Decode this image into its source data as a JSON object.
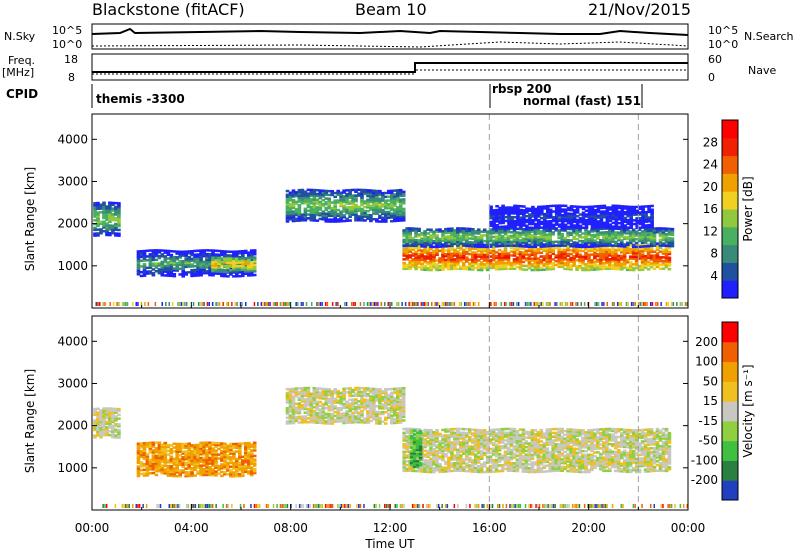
{
  "header": {
    "title": "Blackstone (fitACF)",
    "beam": "Beam 10",
    "date": "21/Nov/2015"
  },
  "strip": {
    "nsky_label": "N.Sky",
    "nsky_ticks": [
      "10^5",
      "10^0"
    ],
    "nsearch_label": "N.Search",
    "nsearch_ticks": [
      "10^5",
      "10^0"
    ],
    "freq_label": "Freq.",
    "freq_unit": "[MHz]",
    "freq_ticks": [
      "18",
      "8"
    ],
    "nave_label": "Nave",
    "nave_ticks": [
      "60",
      "0"
    ],
    "cpid_label": "CPID",
    "programs": [
      "themis -3300",
      "rbsp 200",
      "normal (fast) 151"
    ]
  },
  "chart_data": [
    {
      "type": "heatmap",
      "panel": "power",
      "ylabel": "Slant Range [km]",
      "xlabel": "",
      "ylim": [
        0,
        4600
      ],
      "yticks": [
        "1000",
        "2000",
        "3000",
        "4000"
      ],
      "xlim_hours": [
        0,
        24
      ],
      "colorbar_label": "Power [dB]",
      "colorbar_ticks": [
        "28",
        "24",
        "20",
        "16",
        "12",
        "8",
        "4"
      ],
      "colors": [
        "#2020ff",
        "#2050a0",
        "#3a8a7a",
        "#48b060",
        "#90c840",
        "#f0d020",
        "#f0a000",
        "#f06000",
        "#f02000",
        "#ff0000"
      ],
      "echo_regions": [
        {
          "t0": 0.05,
          "t1": 1.1,
          "rmin": 1700,
          "rmax": 2500,
          "level": 4
        },
        {
          "t0": 1.8,
          "t1": 6.6,
          "rmin": 750,
          "rmax": 1350,
          "level": 3
        },
        {
          "t0": 4.8,
          "t1": 6.5,
          "rmin": 850,
          "rmax": 1200,
          "level": 6
        },
        {
          "t0": 7.8,
          "t1": 12.5,
          "rmin": 2050,
          "rmax": 2800,
          "level": 4
        },
        {
          "t0": 12.5,
          "t1": 23.2,
          "rmin": 900,
          "rmax": 1500,
          "level": 8
        },
        {
          "t0": 12.5,
          "t1": 23.4,
          "rmin": 1450,
          "rmax": 1900,
          "level": 4
        },
        {
          "t0": 16.0,
          "t1": 22.5,
          "rmin": 1900,
          "rmax": 2400,
          "level": 1
        }
      ]
    },
    {
      "type": "heatmap",
      "panel": "velocity",
      "ylabel": "Slant Range [km]",
      "xlabel": "Time UT",
      "ylim": [
        0,
        4600
      ],
      "yticks": [
        "1000",
        "2000",
        "3000",
        "4000"
      ],
      "xlim_hours": [
        0,
        24
      ],
      "xticks": [
        "00:00",
        "04:00",
        "08:00",
        "12:00",
        "16:00",
        "20:00",
        "00:00"
      ],
      "colorbar_label": "Velocity [m s⁻¹]",
      "colorbar_ticks": [
        "200",
        "100",
        "50",
        "15",
        "-15",
        "-50",
        "-100",
        "-200"
      ],
      "colors": [
        "#2040c0",
        "#2a8040",
        "#40c040",
        "#90d040",
        "#c8c8c0",
        "#f0c020",
        "#f0a000",
        "#f06000",
        "#ff0000"
      ],
      "echo_regions": [
        {
          "t0": 0.05,
          "t1": 1.1,
          "rmin": 1700,
          "rmax": 2400,
          "level": 4
        },
        {
          "t0": 1.8,
          "t1": 6.6,
          "rmin": 800,
          "rmax": 1600,
          "level": 6
        },
        {
          "t0": 7.8,
          "t1": 12.5,
          "rmin": 2050,
          "rmax": 2900,
          "level": 4
        },
        {
          "t0": 12.5,
          "t1": 23.3,
          "rmin": 900,
          "rmax": 1900,
          "level": 4
        },
        {
          "t0": 12.8,
          "t1": 13.2,
          "rmin": 1000,
          "rmax": 1900,
          "level": 2
        }
      ]
    }
  ],
  "colors": {
    "ground_scatter": "#c8c8c0",
    "markers": "#a0a0a0"
  }
}
